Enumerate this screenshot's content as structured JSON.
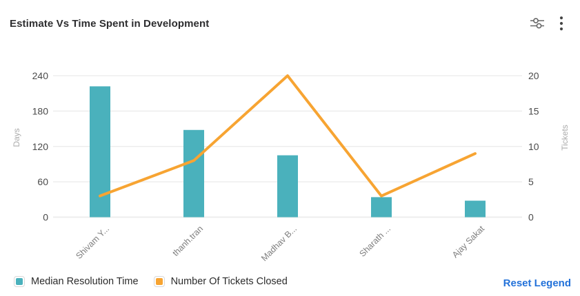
{
  "header": {
    "title": "Estimate Vs Time Spent in Development",
    "actions": [
      {
        "icon": "sliders-icon"
      },
      {
        "icon": "kebab-menu-icon"
      }
    ]
  },
  "chart_data": {
    "type": "combo",
    "categories": [
      "Shivam Y...",
      "thanh.tran",
      "Madhav B...",
      "Sharath ...",
      "Ajay Sakat"
    ],
    "series": [
      {
        "name": "Median Resolution Time",
        "type": "bar",
        "axis": "left",
        "color": "#4AB1BC",
        "values": [
          222,
          148,
          105,
          34,
          28
        ]
      },
      {
        "name": "Number Of Tickets Closed",
        "type": "line",
        "axis": "right",
        "color": "#F7A432",
        "values": [
          3,
          8,
          20,
          3,
          9
        ]
      }
    ],
    "left_axis": {
      "label": "Days",
      "ticks": [
        0,
        60,
        120,
        180,
        240
      ],
      "min": 0,
      "max": 240
    },
    "right_axis": {
      "label": "Tickets",
      "ticks": [
        0,
        5,
        10,
        15,
        20
      ],
      "min": 0,
      "max": 20
    },
    "grid": true,
    "legend_position": "bottom",
    "title": "Estimate Vs Time Spent in Development"
  },
  "legend": {
    "reset_label": "Reset Legend"
  },
  "colors": {
    "bar": "#4AB1BC",
    "line": "#F7A432",
    "link": "#2271D9",
    "gridline": "#ededed",
    "tick_label": "#4a4a4a",
    "category_label": "#7e7e7e",
    "axis_name": "#ababab"
  }
}
